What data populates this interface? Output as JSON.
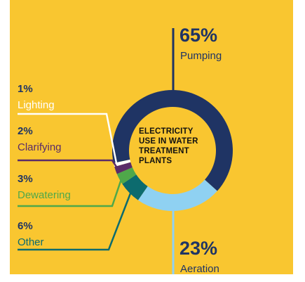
{
  "chart_data": {
    "type": "donut",
    "title": "ELECTRICITY USE IN WATER TREATMENT PLANTS",
    "categories": [
      "Pumping",
      "Aeration",
      "Other",
      "Dewatering",
      "Clarifying",
      "Lighting"
    ],
    "values": [
      65,
      23,
      6,
      3,
      2,
      1
    ],
    "value_labels": [
      "65%",
      "23%",
      "6%",
      "3%",
      "2%",
      "1%"
    ],
    "colors": [
      "#1f3464",
      "#8fd1f2",
      "#0c6b6e",
      "#4fa84a",
      "#5a2b68",
      "#ffffff"
    ]
  }
}
